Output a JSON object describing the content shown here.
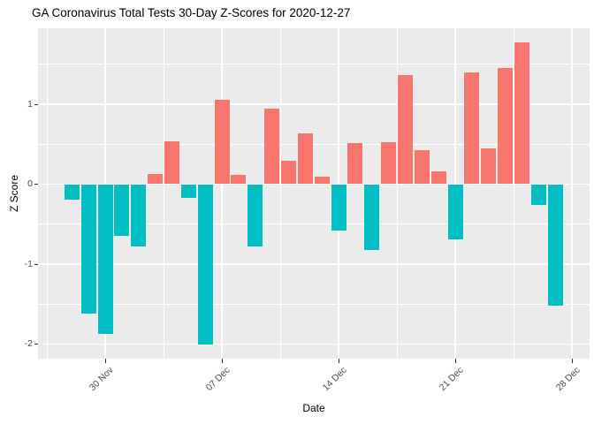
{
  "chart_data": {
    "type": "bar",
    "title": "GA Coronavirus Total Tests 30-Day Z-Scores for 2020-12-27",
    "xlabel": "Date",
    "ylabel": "Z Score",
    "x_dates": [
      "2020-11-28",
      "2020-11-29",
      "2020-11-30",
      "2020-12-01",
      "2020-12-02",
      "2020-12-03",
      "2020-12-04",
      "2020-12-05",
      "2020-12-06",
      "2020-12-07",
      "2020-12-08",
      "2020-12-09",
      "2020-12-10",
      "2020-12-11",
      "2020-12-12",
      "2020-12-13",
      "2020-12-14",
      "2020-12-15",
      "2020-12-16",
      "2020-12-17",
      "2020-12-18",
      "2020-12-19",
      "2020-12-20",
      "2020-12-21",
      "2020-12-22",
      "2020-12-23",
      "2020-12-24",
      "2020-12-25",
      "2020-12-26",
      "2020-12-27"
    ],
    "values": [
      -0.19,
      -1.62,
      -1.87,
      -0.65,
      -0.78,
      0.13,
      0.54,
      -0.17,
      -2.01,
      1.05,
      0.12,
      -0.78,
      0.94,
      0.29,
      0.64,
      0.09,
      -0.58,
      0.51,
      -0.82,
      0.53,
      1.36,
      0.43,
      0.16,
      -0.69,
      1.4,
      0.45,
      1.45,
      1.77,
      -0.26,
      -1.52
    ],
    "bar_colors": {
      "positive": "#F8766D",
      "negative": "#00BFC4"
    },
    "x_axis": {
      "tick_labels": [
        "30 Nov",
        "07 Dec",
        "14 Dec",
        "21 Dec",
        "28 Dec"
      ],
      "tick_day_index": [
        2,
        9,
        16,
        23,
        30
      ],
      "minor_day_index": [
        -1.5,
        5.5,
        12.5,
        19.5,
        26.5
      ]
    },
    "y_axis": {
      "tick_labels": [
        "1",
        "0",
        "-1",
        "-2"
      ],
      "tick_values": [
        1,
        0,
        -1,
        -2
      ],
      "minor_values": [
        1.5,
        0.5,
        -0.5,
        -1.5
      ],
      "ylim": [
        -2.2,
        1.95
      ]
    },
    "legend": "none",
    "grid": "on",
    "style": {
      "figure_bg": "#FFFFFF",
      "panel_bg": "#EBEBEB",
      "grid_color": "#FFFFFF",
      "tick_label_color": "#4D4D4D",
      "axis_title_color": "#000000",
      "tick_mark_color": "#333333"
    }
  }
}
